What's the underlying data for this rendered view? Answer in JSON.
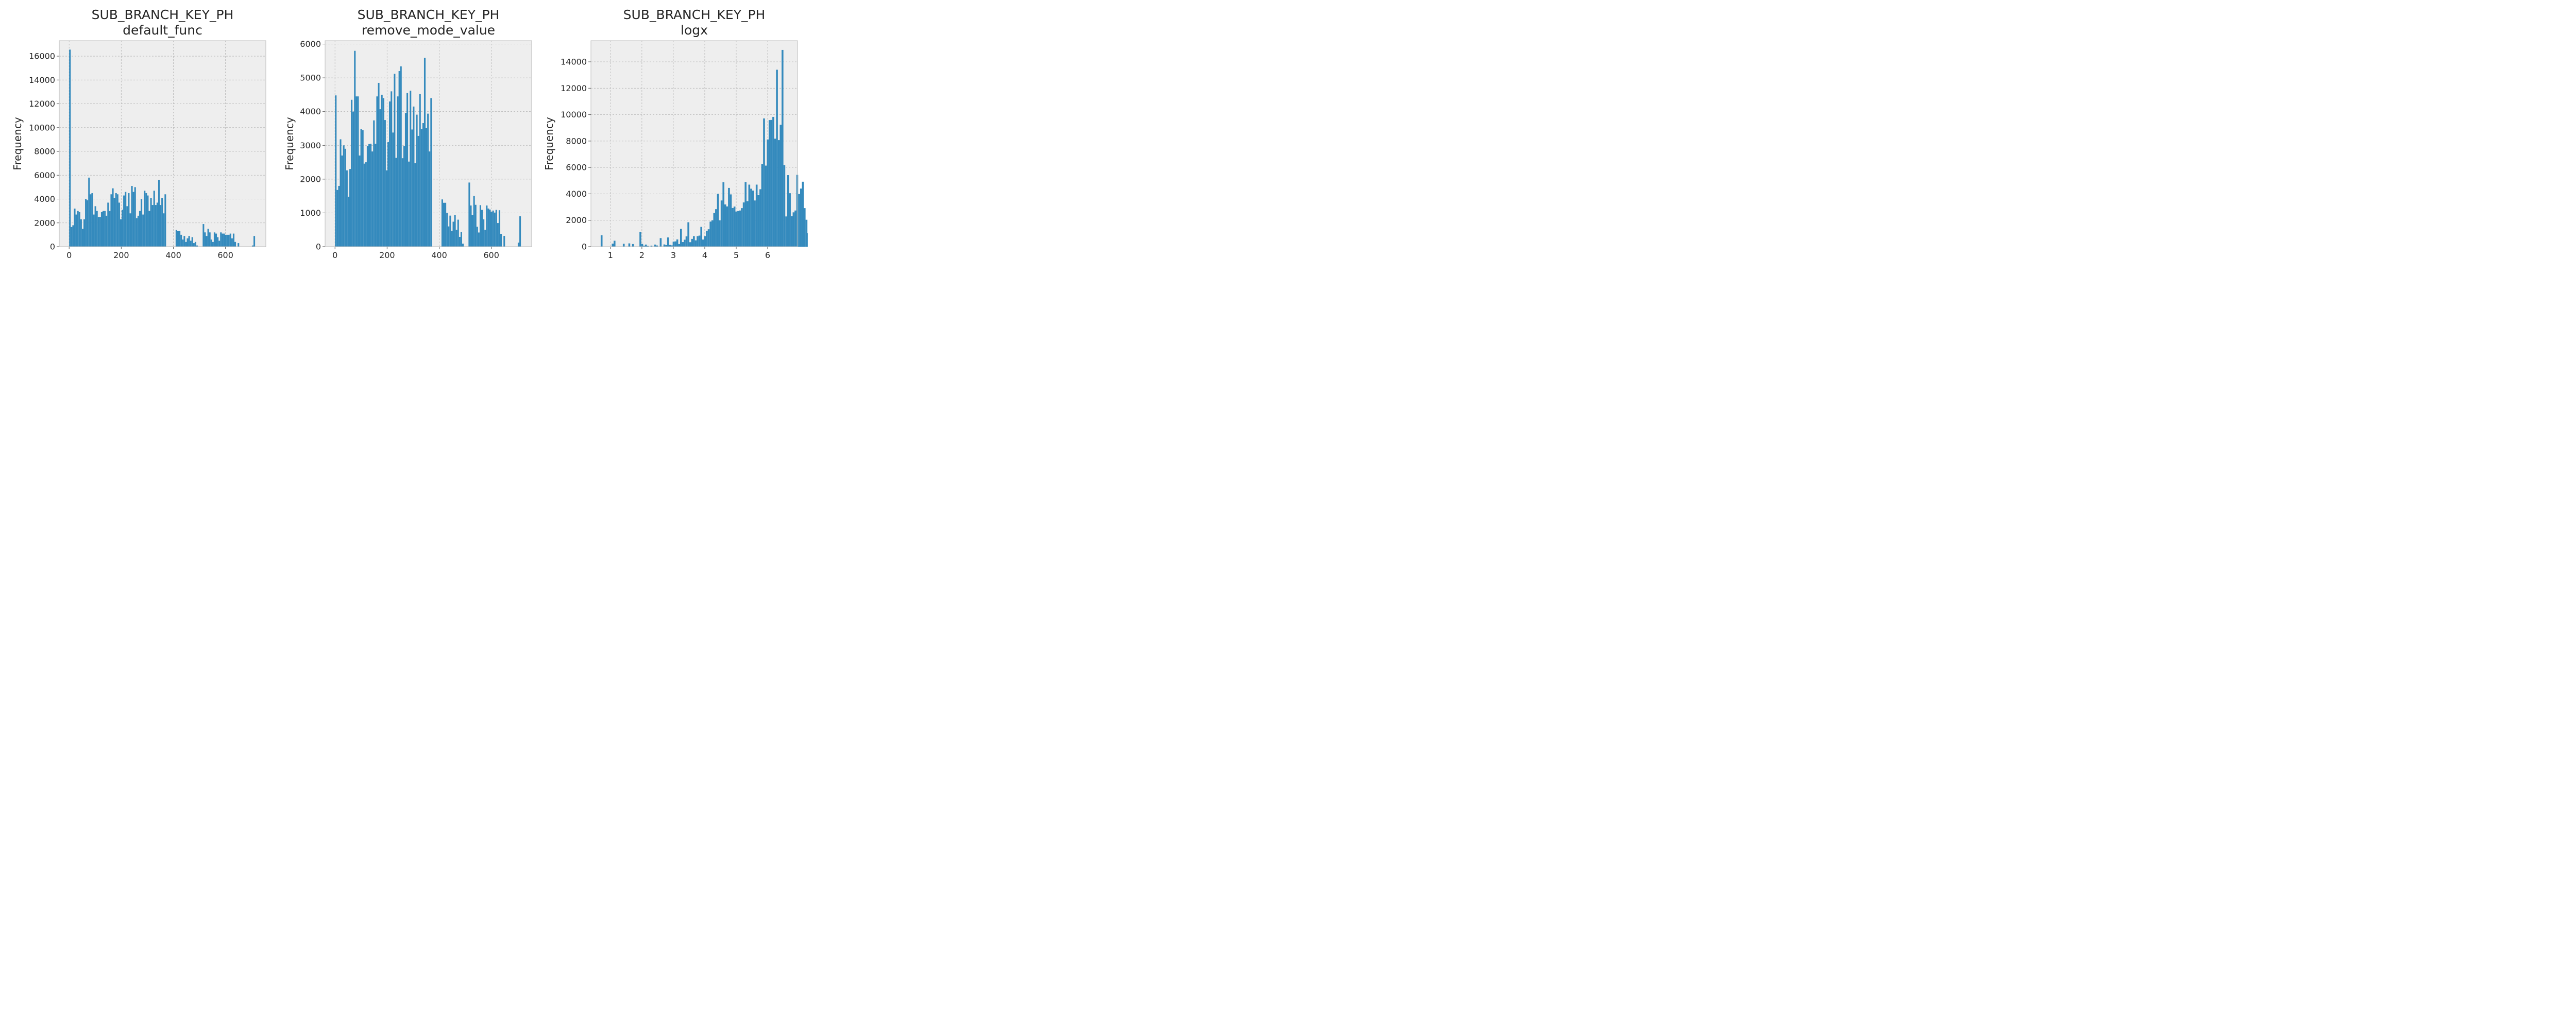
{
  "chart_data": [
    {
      "type": "bar",
      "subtype": "histogram",
      "title_line1": "SUB_BRANCH_KEY_PH",
      "title_line2": "default_func",
      "xlabel": "",
      "ylabel": "Frequency",
      "xlim": [
        -38,
        755
      ],
      "ylim": [
        0,
        17300
      ],
      "xticks": [
        0,
        200,
        400,
        600
      ],
      "yticks": [
        0,
        2000,
        4000,
        6000,
        8000,
        10000,
        12000,
        14000,
        16000
      ],
      "bin_start": 0,
      "bin_width": 6.1,
      "values": [
        16550,
        1650,
        1800,
        3200,
        2700,
        3000,
        2900,
        2300,
        1500,
        2300,
        4000,
        3900,
        5800,
        4400,
        4500,
        2700,
        3400,
        3000,
        2500,
        2500,
        2900,
        3000,
        3000,
        2600,
        3700,
        3000,
        4400,
        4900,
        4100,
        4500,
        4400,
        3700,
        2300,
        3100,
        4300,
        4600,
        3400,
        4500,
        2800,
        5100,
        4600,
        5000,
        2400,
        2600,
        3000,
        4000,
        2700,
        4700,
        4500,
        4300,
        3000,
        4100,
        3500,
        4700,
        3500,
        3700,
        5600,
        3500,
        4100,
        2800,
        4400,
        0,
        0,
        0,
        0,
        0,
        0,
        1400,
        1300,
        1300,
        1000,
        600,
        900,
        400,
        700,
        900,
        500,
        800,
        300,
        400,
        100,
        0,
        0,
        0,
        1900,
        1200,
        900,
        1500,
        1200,
        600,
        400,
        1200,
        1100,
        800,
        500,
        1200,
        1100,
        1100,
        1000,
        1000,
        1000,
        1100,
        700,
        1100,
        400,
        0,
        300,
        0,
        0,
        0,
        0,
        0,
        0,
        0,
        0,
        100,
        900
      ]
    },
    {
      "type": "bar",
      "subtype": "histogram",
      "title_line1": "SUB_BRANCH_KEY_PH",
      "title_line2": "remove_mode_value",
      "xlabel": "",
      "ylabel": "Frequency",
      "xlim": [
        -38,
        755
      ],
      "ylim": [
        0,
        6100
      ],
      "xticks": [
        0,
        200,
        400,
        600
      ],
      "yticks": [
        0,
        1000,
        2000,
        3000,
        4000,
        5000,
        6000
      ],
      "bin_start": 0,
      "bin_width": 6.1,
      "values": [
        4480,
        1680,
        1800,
        3180,
        2700,
        3000,
        2900,
        2260,
        1480,
        2300,
        4350,
        4000,
        5800,
        4450,
        4450,
        2700,
        3480,
        3450,
        2460,
        2500,
        2980,
        3040,
        3050,
        2820,
        3740,
        3050,
        4450,
        4850,
        4070,
        4500,
        4400,
        3750,
        2260,
        3100,
        4300,
        4600,
        3380,
        5120,
        2630,
        4450,
        5200,
        5340,
        2620,
        2980,
        3960,
        4550,
        2520,
        4620,
        3470,
        4150,
        2470,
        3910,
        3280,
        4520,
        3480,
        3660,
        5590,
        3510,
        3940,
        2820,
        4400,
        0,
        0,
        0,
        0,
        0,
        0,
        1400,
        1300,
        1300,
        1000,
        600,
        920,
        470,
        740,
        940,
        500,
        800,
        290,
        440,
        90,
        0,
        0,
        0,
        1900,
        1220,
        940,
        1500,
        1240,
        590,
        420,
        1230,
        1090,
        810,
        500,
        1220,
        1130,
        1100,
        1030,
        1070,
        1010,
        1090,
        700,
        1080,
        380,
        0,
        320,
        0,
        0,
        0,
        0,
        0,
        0,
        0,
        0,
        120,
        900
      ]
    },
    {
      "type": "bar",
      "subtype": "histogram",
      "title_line1": "SUB_BRANCH_KEY_PH",
      "title_line2": "logx",
      "xlabel": "",
      "ylabel": "Frequency",
      "xlim": [
        0.38,
        6.95
      ],
      "ylim": [
        0,
        15600
      ],
      "xticks": [
        1,
        2,
        3,
        4,
        5,
        6
      ],
      "yticks": [
        0,
        2000,
        4000,
        6000,
        8000,
        10000,
        12000,
        14000
      ],
      "bin_start": 0.69,
      "bin_width": 0.0587,
      "values": [
        870,
        0,
        0,
        0,
        0,
        0,
        230,
        450,
        0,
        0,
        0,
        0,
        220,
        0,
        0,
        250,
        0,
        200,
        0,
        0,
        0,
        1130,
        210,
        80,
        160,
        60,
        0,
        80,
        0,
        160,
        90,
        0,
        650,
        0,
        170,
        120,
        700,
        130,
        100,
        380,
        400,
        550,
        200,
        1350,
        350,
        530,
        780,
        1850,
        340,
        590,
        800,
        480,
        800,
        840,
        1500,
        540,
        800,
        1200,
        1320,
        1900,
        1990,
        2550,
        2840,
        4000,
        2000,
        3500,
        4880,
        3200,
        3050,
        4450,
        3960,
        2930,
        3040,
        2660,
        2700,
        2740,
        2920,
        3350,
        4900,
        3450,
        4700,
        4390,
        4250,
        3500,
        4700,
        3900,
        4350,
        6260,
        9710,
        6140,
        8120,
        9590,
        9600,
        9830,
        8180,
        13400,
        8070,
        9230,
        14900,
        6180,
        2290,
        5420,
        4050,
        2310,
        2600,
        2740,
        5440,
        3990,
        4400,
        4920,
        2920,
        2040,
        1020
      ]
    }
  ],
  "colors": {
    "bar": "#348ABD",
    "plot_background": "#EEEEEE",
    "grid": "#B2B2B2",
    "axes_edge": "#BCBCBC",
    "text": "#262626"
  }
}
